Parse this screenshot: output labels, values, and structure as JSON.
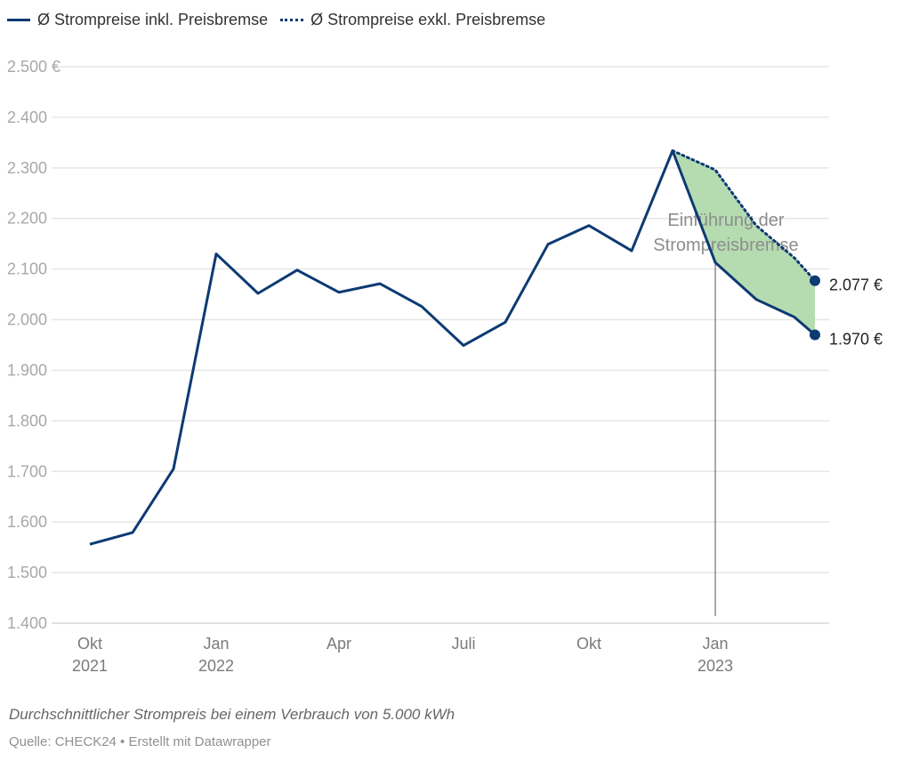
{
  "legend": {
    "items": [
      {
        "label": "Ø Strompreise inkl. Preisbremse",
        "style": "solid"
      },
      {
        "label": "Ø Strompreise exkl. Preisbremse",
        "style": "dotted"
      }
    ]
  },
  "colors": {
    "line": "#0d3a73",
    "area": "#b5dcb1",
    "grid": "#e4e4e4",
    "axis_text": "#a8a8a8"
  },
  "annotation": {
    "line1": "Einführung der",
    "line2": "Strompreisbremse"
  },
  "end_labels": {
    "inkl": "1.970 €",
    "exkl": "2.077 €"
  },
  "footer": {
    "notes": "Durchschnittlicher Strompreis bei einem Verbrauch von 5.000 kWh",
    "source": "Quelle: CHECK24 • Erstellt mit Datawrapper"
  },
  "chart_data": {
    "type": "line",
    "title": "",
    "xlabel": "",
    "ylabel": "",
    "ylim": [
      1400,
      2500
    ],
    "y_ticks": [
      "2.500 €",
      "2.400",
      "2.300",
      "2.200",
      "2.100",
      "2.000",
      "1.900",
      "1.800",
      "1.700",
      "1.600",
      "1.500",
      "1.400"
    ],
    "x_ticks": [
      {
        "line1": "Okt",
        "line2": "2021"
      },
      {
        "line1": "Jan",
        "line2": "2022"
      },
      {
        "line1": "Apr",
        "line2": ""
      },
      {
        "line1": "Juli",
        "line2": ""
      },
      {
        "line1": "Okt",
        "line2": ""
      },
      {
        "line1": "Jan",
        "line2": "2023"
      }
    ],
    "grid": true,
    "legend_position": "top",
    "categories": [
      "Okt 2021",
      "Nov 2021",
      "Dez 2021",
      "Jan 2022",
      "Feb 2022",
      "Mär 2022",
      "Apr 2022",
      "Mai 2022",
      "Jun 2022",
      "Jul 2022",
      "Aug 2022",
      "Sep 2022",
      "Okt 2022",
      "Nov 2022",
      "Dez 2022",
      "Jan 2023",
      "Feb 2023",
      "Mär 2023",
      "Apr 2023"
    ],
    "series": [
      {
        "name": "Ø Strompreise inkl. Preisbremse",
        "style": "solid",
        "values": [
          1556,
          1579,
          1705,
          2130,
          2052,
          2098,
          2054,
          2071,
          2026,
          1949,
          1995,
          2149,
          2186,
          2136,
          2334,
          2113,
          2040,
          2005,
          1970
        ]
      },
      {
        "name": "Ø Strompreise exkl. Preisbremse",
        "style": "dotted",
        "values": [
          null,
          null,
          null,
          null,
          null,
          null,
          null,
          null,
          null,
          null,
          null,
          null,
          null,
          null,
          2334,
          2296,
          2186,
          2122,
          2077
        ]
      }
    ],
    "annotations": [
      {
        "text": "Einführung der Strompreisbremse",
        "x": "Jan 2023"
      }
    ],
    "end_value_labels": {
      "inkl": "1.970 €",
      "exkl": "2.077 €"
    }
  }
}
